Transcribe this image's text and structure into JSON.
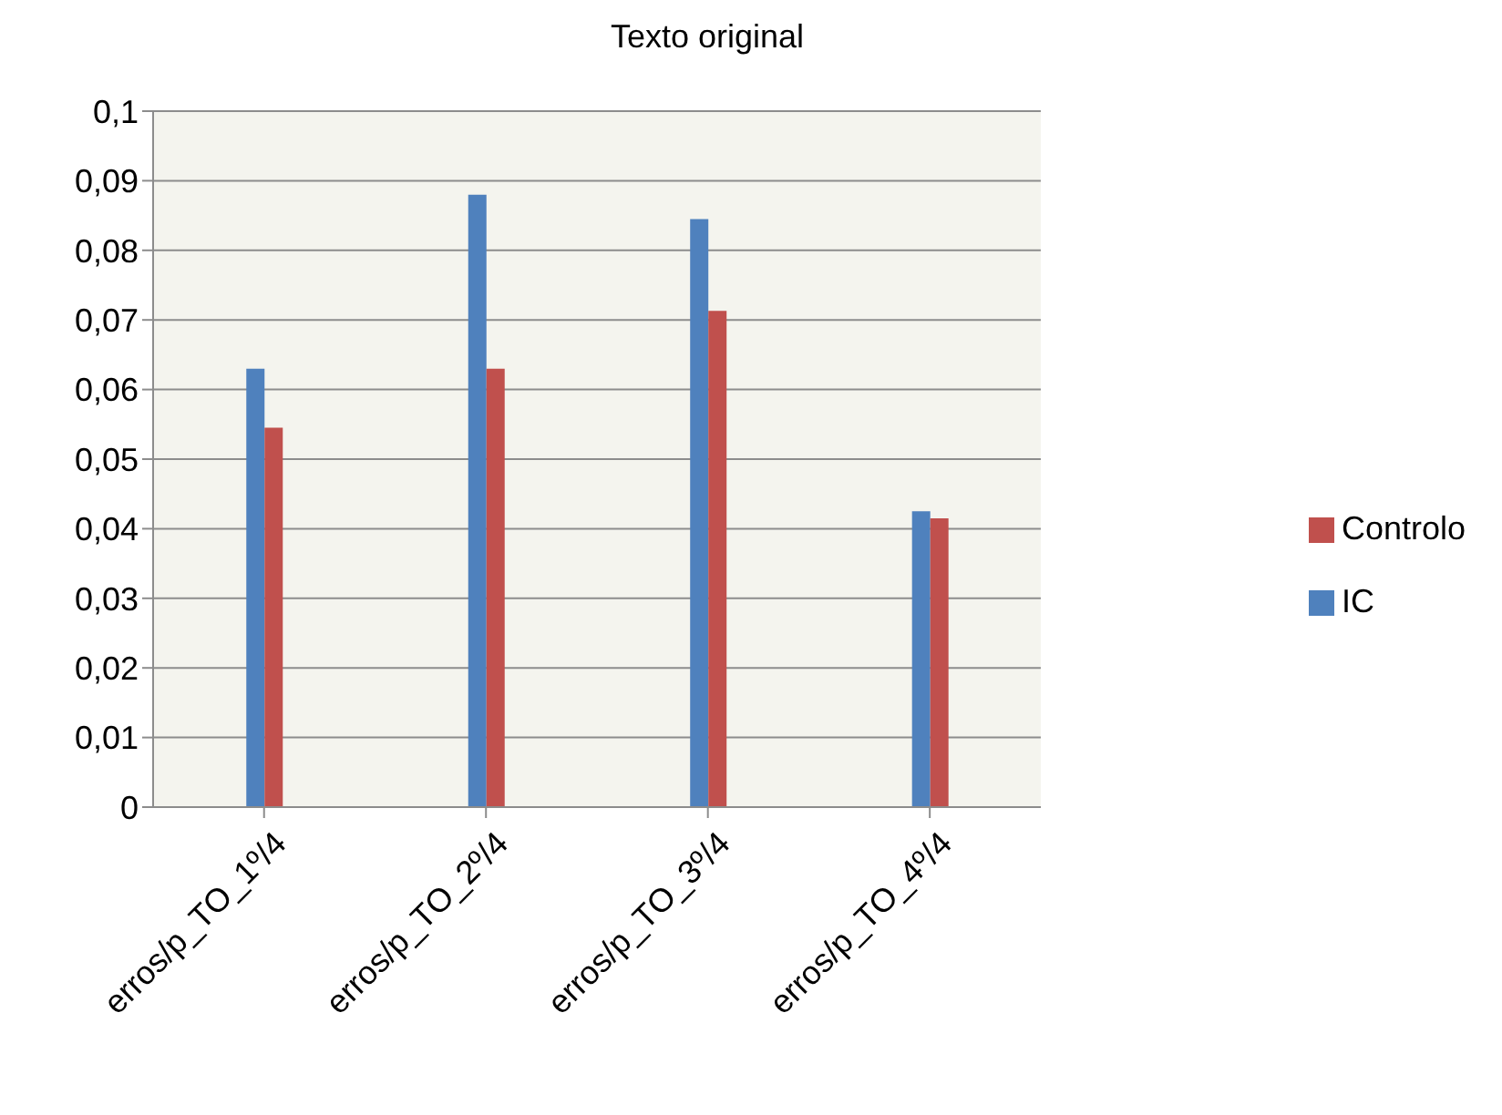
{
  "chart_data": {
    "type": "bar",
    "title": "Texto original",
    "categories": [
      "erros/p_TO_1º/4",
      "erros/p_TO_2º/4",
      "erros/p_TO_3º/4",
      "erros/p_TO_4º/4"
    ],
    "series": [
      {
        "name": "IC",
        "color": "#4f81bd",
        "values": [
          0.063,
          0.088,
          0.0845,
          0.0425
        ]
      },
      {
        "name": "Controlo",
        "color": "#c0504d",
        "values": [
          0.0545,
          0.063,
          0.0713,
          0.0415
        ]
      }
    ],
    "ylim": [
      0,
      0.1
    ],
    "yticks": [
      {
        "value": 0,
        "label": "0"
      },
      {
        "value": 0.01,
        "label": "0,01"
      },
      {
        "value": 0.02,
        "label": "0,02"
      },
      {
        "value": 0.03,
        "label": "0,03"
      },
      {
        "value": 0.04,
        "label": "0,04"
      },
      {
        "value": 0.05,
        "label": "0,05"
      },
      {
        "value": 0.06,
        "label": "0,06"
      },
      {
        "value": 0.07,
        "label": "0,07"
      },
      {
        "value": 0.08,
        "label": "0,08"
      },
      {
        "value": 0.09,
        "label": "0,09"
      },
      {
        "value": 0.1,
        "label": "0,1"
      }
    ],
    "grid": "y",
    "legend": "right"
  }
}
